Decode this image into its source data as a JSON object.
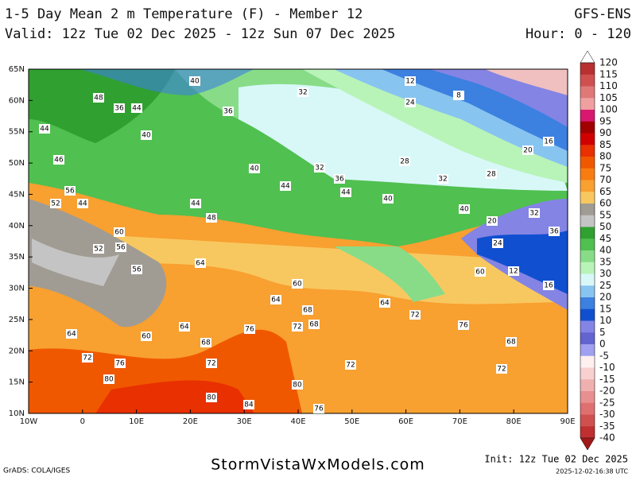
{
  "header": {
    "title": "1-5 Day Mean 2 m Temperature (F) - Member 12",
    "model": "GFS-ENS",
    "valid": "Valid: 12z Tue 02 Dec 2025 - 12z Sun 07 Dec 2025",
    "hours": "Hour: 0 - 120"
  },
  "map": {
    "lat_labels": [
      "65N",
      "60N",
      "55N",
      "50N",
      "45N",
      "40N",
      "35N",
      "30N",
      "25N",
      "20N",
      "15N",
      "10N"
    ],
    "lon_labels": [
      "10W",
      "0",
      "10E",
      "20E",
      "30E",
      "40E",
      "50E",
      "60E",
      "70E",
      "80E",
      "90E"
    ],
    "contour_labels": [
      "40",
      "32",
      "12",
      "24",
      "8",
      "48",
      "36",
      "44",
      "36",
      "44",
      "40",
      "20",
      "16",
      "46",
      "28",
      "40",
      "32",
      "36",
      "32",
      "28",
      "44",
      "44",
      "40",
      "56",
      "52",
      "44",
      "44",
      "48",
      "60",
      "52",
      "56",
      "64",
      "56",
      "60",
      "64",
      "68",
      "72",
      "68",
      "76",
      "64",
      "60",
      "64",
      "72",
      "76",
      "68",
      "72",
      "80",
      "80",
      "84",
      "80",
      "76",
      "72",
      "64",
      "72",
      "76",
      "68",
      "72",
      "16",
      "12",
      "20",
      "24",
      "32",
      "36",
      "40",
      "60"
    ]
  },
  "colorbar": {
    "labels": [
      "120",
      "115",
      "110",
      "105",
      "100",
      "95",
      "90",
      "85",
      "80",
      "75",
      "70",
      "65",
      "60",
      "55",
      "50",
      "45",
      "40",
      "35",
      "30",
      "25",
      "20",
      "15",
      "10",
      "5",
      "0",
      "-5",
      "-10",
      "-15",
      "-20",
      "-25",
      "-30",
      "-35",
      "-40"
    ],
    "colors": [
      "#b83030",
      "#d05050",
      "#e07878",
      "#f0a0a0",
      "#d81870",
      "#a00000",
      "#d00000",
      "#e83000",
      "#f05800",
      "#f87c10",
      "#f8a030",
      "#f8c860",
      "#a09c94",
      "#c4c4c4",
      "#30a030",
      "#50c050",
      "#88dc88",
      "#b8f4b8",
      "#d8f8f8",
      "#88c4f0",
      "#3c80e0",
      "#1050d0",
      "#8484e4",
      "#6464d0",
      "#a0a0f0",
      "#fff0f0",
      "#f8d0d0",
      "#f0b0b0",
      "#e89090",
      "#e07070",
      "#d05050",
      "#c03030"
    ]
  },
  "footer": {
    "credit": "GrADS: COLA/IGES",
    "site": "StormVistaWxModels.com",
    "init": "Init: 12z Tue 02 Dec 2025",
    "stamp": "2025-12-02-16:38 UTC"
  }
}
